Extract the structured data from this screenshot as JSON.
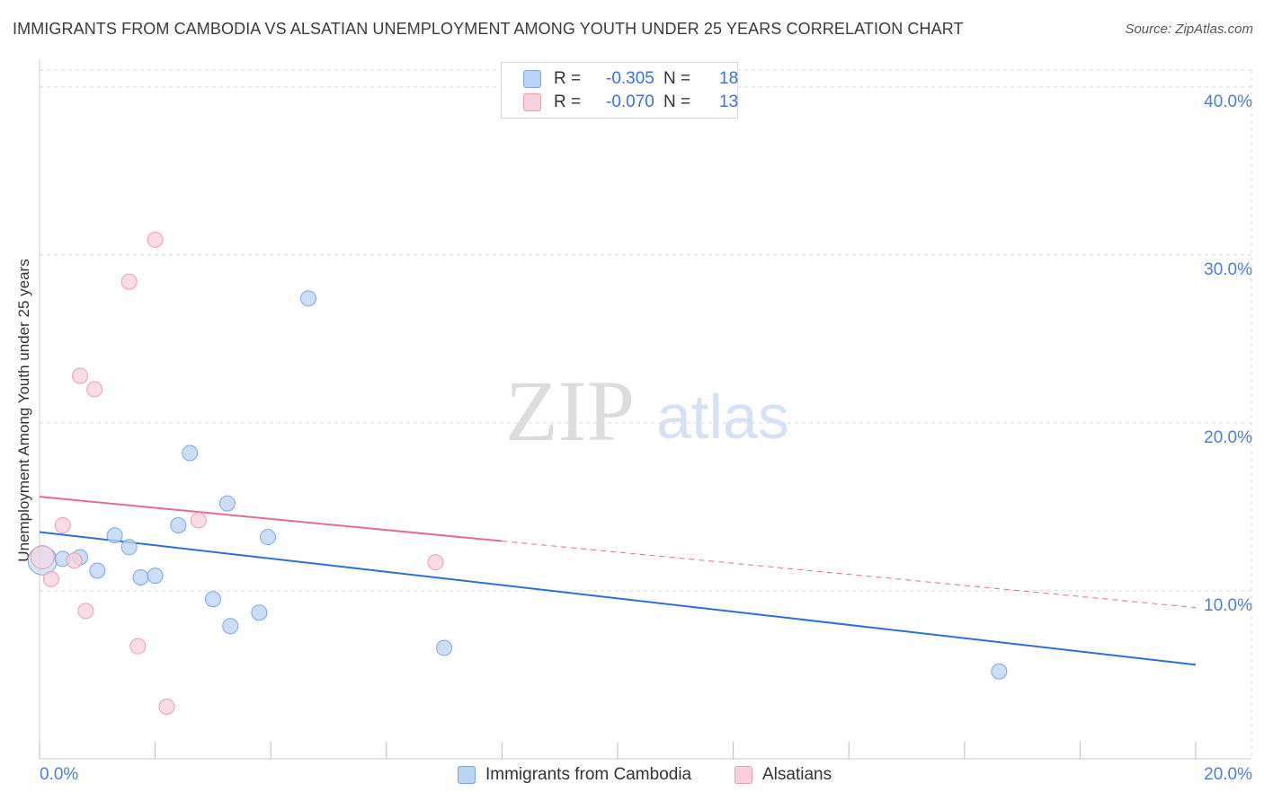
{
  "header": {
    "title": "IMMIGRANTS FROM CAMBODIA VS ALSATIAN UNEMPLOYMENT AMONG YOUTH UNDER 25 YEARS CORRELATION CHART",
    "source": "Source: ZipAtlas.com"
  },
  "watermark": {
    "zip": "ZIP",
    "atlas": "atlas"
  },
  "colors": {
    "blue_fill": "#b9d3f6",
    "blue_stroke": "#7aa6e0",
    "blue_line": "#2e6fd2",
    "pink_fill": "#fad0dc",
    "pink_stroke": "#ec9bb4",
    "pink_line": "#e46b93",
    "grid": "#d9d9d9",
    "axis_label": "#4a7fd0"
  },
  "legend": {
    "r_label": "R = ",
    "n_label": "N = ",
    "series": [
      {
        "name": "Immigrants from Cambodia",
        "r": "-0.305",
        "n": "18"
      },
      {
        "name": "Alsatians",
        "r": "-0.070",
        "n": "13"
      }
    ]
  },
  "chart_data": {
    "type": "scatter",
    "title": "IMMIGRANTS FROM CAMBODIA VS ALSATIAN UNEMPLOYMENT AMONG YOUTH UNDER 25 YEARS CORRELATION CHART",
    "xlabel": "",
    "ylabel": "Unemployment Among Youth under 25 years",
    "xlim": [
      0,
      20
    ],
    "ylim": [
      0,
      41
    ],
    "x_tick_labels": [
      "0.0%",
      "20.0%"
    ],
    "y_ticks": [
      10,
      20,
      30,
      40
    ],
    "y_tick_labels": [
      "10.0%",
      "20.0%",
      "30.0%",
      "40.0%"
    ],
    "grid": true,
    "series": [
      {
        "name": "Immigrants from Cambodia",
        "color": "#b9d3f6",
        "points": [
          [
            0.05,
            11.8
          ],
          [
            0.4,
            11.9
          ],
          [
            0.7,
            12.0
          ],
          [
            1.0,
            11.2
          ],
          [
            1.3,
            13.3
          ],
          [
            1.55,
            12.6
          ],
          [
            1.75,
            10.8
          ],
          [
            2.0,
            10.9
          ],
          [
            2.4,
            13.9
          ],
          [
            2.6,
            18.2
          ],
          [
            3.0,
            9.5
          ],
          [
            3.3,
            7.9
          ],
          [
            3.25,
            15.2
          ],
          [
            3.8,
            8.7
          ],
          [
            3.95,
            13.2
          ],
          [
            4.65,
            27.4
          ],
          [
            7.0,
            6.6
          ],
          [
            16.6,
            5.2
          ]
        ],
        "trend": {
          "x": [
            0,
            20
          ],
          "y": [
            13.5,
            5.6
          ],
          "dashed_from_x": null
        }
      },
      {
        "name": "Alsatians",
        "color": "#fad0dc",
        "points": [
          [
            0.05,
            12.0
          ],
          [
            0.2,
            10.7
          ],
          [
            0.4,
            13.9
          ],
          [
            0.6,
            11.8
          ],
          [
            0.7,
            22.8
          ],
          [
            0.8,
            8.8
          ],
          [
            0.95,
            22.0
          ],
          [
            1.55,
            28.4
          ],
          [
            1.7,
            6.7
          ],
          [
            2.0,
            30.9
          ],
          [
            2.2,
            3.1
          ],
          [
            2.75,
            14.2
          ],
          [
            6.85,
            11.7
          ]
        ],
        "trend": {
          "x": [
            0,
            20
          ],
          "y": [
            15.6,
            9.0
          ],
          "dashed_from_x": 8
        }
      }
    ]
  },
  "axes": {
    "x_left_label": "0.0%",
    "x_right_label": "20.0%",
    "y_labels": [
      "10.0%",
      "20.0%",
      "30.0%",
      "40.0%"
    ]
  }
}
